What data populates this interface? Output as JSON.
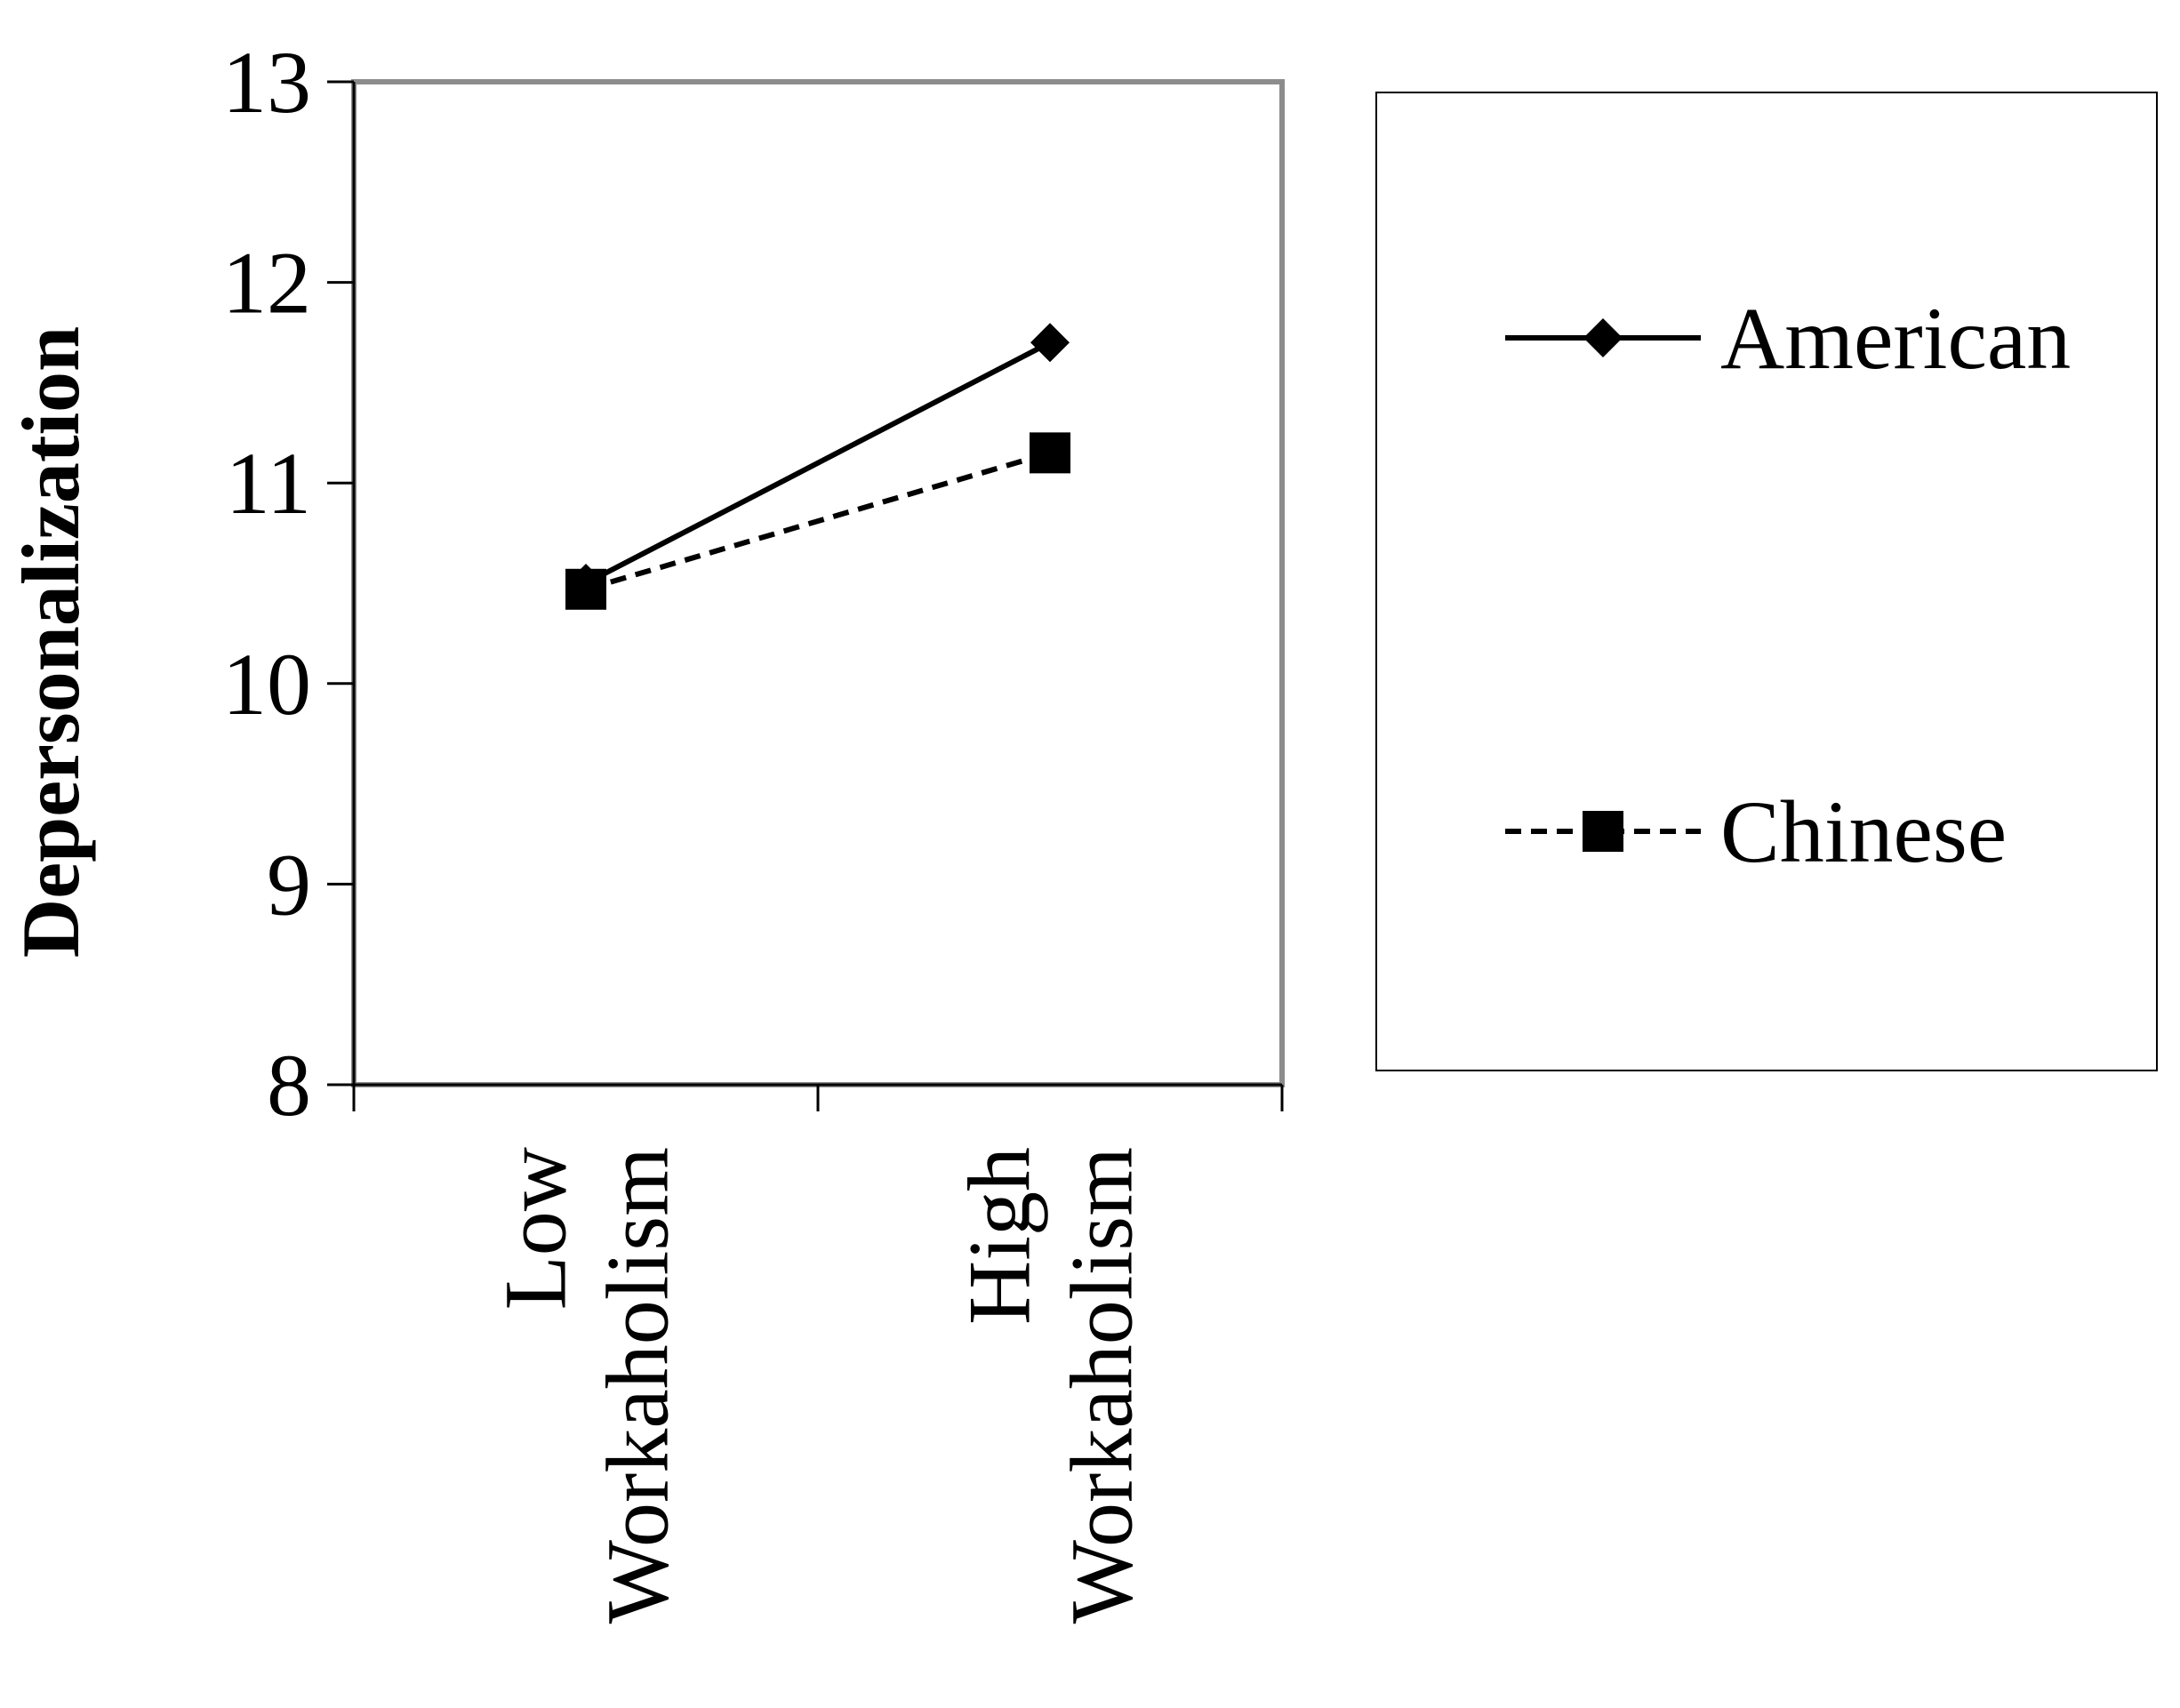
{
  "chart_data": {
    "type": "line",
    "categories": [
      "Low Workaholism",
      "High Workaholism"
    ],
    "category_lines": [
      [
        "Low",
        "Workaholism"
      ],
      [
        "High",
        "Workaholism"
      ]
    ],
    "ylabel": "Depersonalization",
    "ylim": [
      8,
      13
    ],
    "yticks": [
      "8",
      "9",
      "10",
      "11",
      "12",
      "13"
    ],
    "series": [
      {
        "name": "American",
        "values": [
          10.5,
          11.7
        ],
        "marker": "diamond",
        "line": "solid",
        "color": "#000000"
      },
      {
        "name": "Chinese",
        "values": [
          10.47,
          11.15
        ],
        "marker": "square",
        "line": "dashed",
        "color": "#000000"
      }
    ],
    "legend_position": "right",
    "grid": false
  }
}
